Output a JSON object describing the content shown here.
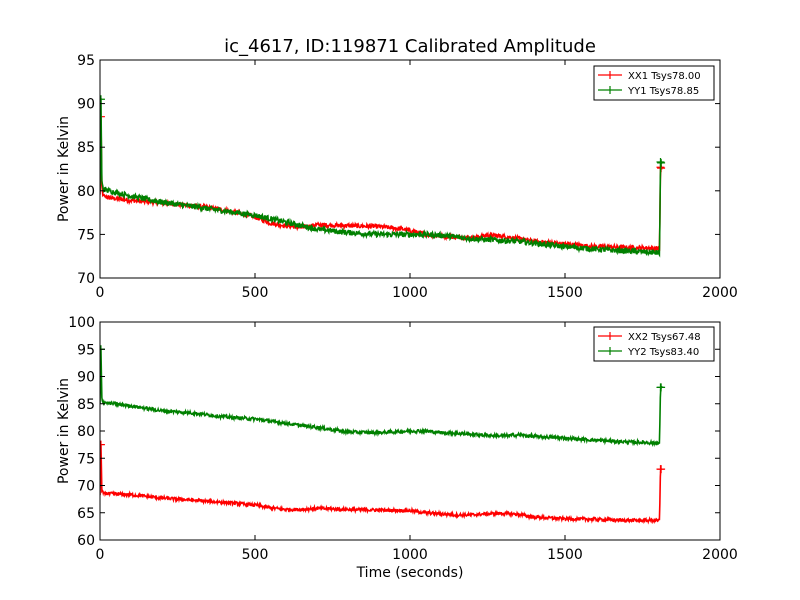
{
  "chart_data": [
    {
      "type": "line",
      "title": "ic_4617, ID:119871 Calibrated Amplitude",
      "xlabel": "",
      "ylabel": "Power in Kelvin",
      "xlim": [
        0,
        2000
      ],
      "ylim": [
        70,
        95
      ],
      "x_ticks": [
        0,
        500,
        1000,
        1500,
        2000
      ],
      "y_ticks": [
        70,
        75,
        80,
        85,
        90,
        95
      ],
      "grid": false,
      "legend_position": "top-right",
      "series": [
        {
          "name": "XX1 Tsys78.00",
          "color": "#ff0000",
          "noise": 0.25,
          "x": [
            0,
            3,
            6,
            10,
            30,
            100,
            200,
            300,
            400,
            500,
            550,
            600,
            650,
            700,
            800,
            900,
            980,
            1050,
            1100,
            1150,
            1200,
            1250,
            1300,
            1350,
            1400,
            1500,
            1600,
            1700,
            1800,
            1805,
            1808,
            1810,
            1812
          ],
          "y": [
            79.5,
            88.5,
            80.5,
            79.4,
            79.2,
            78.9,
            78.6,
            78.3,
            77.8,
            77.0,
            76.3,
            76.0,
            75.8,
            76.1,
            76.0,
            75.9,
            75.6,
            75.0,
            74.8,
            74.7,
            74.6,
            74.9,
            74.8,
            74.5,
            74.2,
            73.9,
            73.6,
            73.5,
            73.4,
            73.2,
            82.7,
            82.6,
            82.6
          ]
        },
        {
          "name": "YY1 Tsys78.85",
          "color": "#008000",
          "noise": 0.3,
          "x": [
            0,
            3,
            6,
            10,
            30,
            100,
            200,
            300,
            400,
            500,
            550,
            600,
            650,
            700,
            800,
            900,
            980,
            1050,
            1100,
            1150,
            1200,
            1250,
            1300,
            1350,
            1400,
            1500,
            1600,
            1700,
            1800,
            1805,
            1808,
            1810,
            1812
          ],
          "y": [
            80.0,
            90.5,
            81.0,
            80.2,
            80.0,
            79.4,
            78.7,
            78.2,
            77.7,
            77.2,
            76.8,
            76.4,
            76.0,
            75.6,
            75.2,
            75.0,
            75.0,
            75.0,
            74.9,
            74.7,
            74.5,
            74.4,
            74.3,
            74.2,
            74.0,
            73.6,
            73.3,
            73.1,
            72.9,
            72.8,
            83.3,
            83.2,
            83.2
          ]
        }
      ]
    },
    {
      "type": "line",
      "title": "",
      "xlabel": "Time (seconds)",
      "ylabel": "Power in Kelvin",
      "xlim": [
        0,
        2000
      ],
      "ylim": [
        60,
        100
      ],
      "x_ticks": [
        0,
        500,
        1000,
        1500,
        2000
      ],
      "y_ticks": [
        60,
        65,
        70,
        75,
        80,
        85,
        90,
        95,
        100
      ],
      "grid": false,
      "legend_position": "top-right",
      "series": [
        {
          "name": "XX2 Tsys67.48",
          "color": "#ff0000",
          "noise": 0.3,
          "x": [
            0,
            3,
            6,
            10,
            30,
            100,
            200,
            300,
            400,
            500,
            550,
            600,
            650,
            700,
            800,
            900,
            1000,
            1050,
            1100,
            1150,
            1200,
            1250,
            1300,
            1350,
            1400,
            1500,
            1600,
            1700,
            1800,
            1805,
            1808,
            1810,
            1812
          ],
          "y": [
            68.5,
            77.5,
            69.0,
            68.6,
            68.5,
            68.3,
            67.7,
            67.3,
            66.9,
            66.4,
            65.9,
            65.6,
            65.6,
            65.8,
            65.6,
            65.5,
            65.4,
            65.0,
            64.8,
            64.6,
            64.6,
            64.8,
            64.9,
            64.7,
            64.2,
            63.9,
            63.8,
            63.6,
            63.6,
            63.6,
            73.0,
            73.0,
            73.0
          ]
        },
        {
          "name": "YY2 Tsys83.40",
          "color": "#008000",
          "noise": 0.3,
          "x": [
            0,
            3,
            6,
            10,
            30,
            100,
            200,
            300,
            400,
            500,
            550,
            600,
            650,
            700,
            800,
            900,
            1000,
            1050,
            1100,
            1150,
            1200,
            1250,
            1300,
            1350,
            1400,
            1500,
            1600,
            1700,
            1800,
            1805,
            1808,
            1810,
            1812
          ],
          "y": [
            85.0,
            95.0,
            86.0,
            85.3,
            85.1,
            84.6,
            83.7,
            83.3,
            82.6,
            82.2,
            81.8,
            81.4,
            81.0,
            80.7,
            79.8,
            79.7,
            80.0,
            80.0,
            79.7,
            79.6,
            79.4,
            79.2,
            79.1,
            79.3,
            79.0,
            78.7,
            78.3,
            78.0,
            77.8,
            77.6,
            88.0,
            88.0,
            88.0
          ]
        }
      ]
    }
  ]
}
